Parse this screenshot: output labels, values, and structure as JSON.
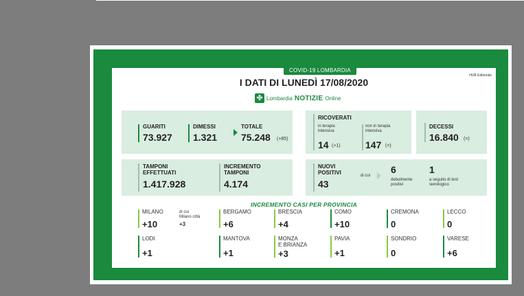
{
  "header": {
    "tag": "COVID-19 LOMBARDIA",
    "title": "I DATI DI LUNEDÌ 17/08/2020",
    "brand_prefix": "Lombardia",
    "brand_name": "NOTIZIE",
    "brand_suffix": "Online",
    "publisher": "HUB Editoriale"
  },
  "summary": {
    "guariti_label": "GUARITI",
    "guariti_value": "73.927",
    "dimessi_label": "DIMESSI",
    "dimessi_value": "1.321",
    "totale_label": "TOTALE",
    "totale_value": "75.248",
    "totale_delta": "(+85)"
  },
  "ricoverati": {
    "label": "RICOVERATI",
    "ti_label_1": "in terapia",
    "ti_label_2": "intensiva",
    "ti_value": "14",
    "ti_delta": "(+1)",
    "nti_label_1": "non in terapia",
    "nti_label_2": "intensiva",
    "nti_value": "147",
    "nti_delta": "(=)"
  },
  "decessi": {
    "label": "DECESSI",
    "value": "16.840",
    "delta": "(=)"
  },
  "tamponi": {
    "label_1": "TAMPONI",
    "label_2": "EFFETTUATI",
    "value": "1.417.928",
    "inc_label_1": "INCREMENTO",
    "inc_label_2": "TAMPONI",
    "inc_value": "4.174"
  },
  "positivi": {
    "label_1": "NUOVI",
    "label_2": "POSITIVI",
    "value": "43",
    "dicui": "di cui",
    "deb_value": "6",
    "deb_label_1": "debolmente",
    "deb_label_2": "positivi",
    "sier_value": "1",
    "sier_label_1": "a seguito di test",
    "sier_label_2": "sierologico"
  },
  "province_title": "INCREMENTO CASI PER PROVINCIA",
  "milano_extra": {
    "line1": "di cui",
    "line2": "Milano città",
    "value": "+3"
  },
  "province": [
    {
      "name": "MILANO",
      "value": "+10",
      "color": "#8ac83f"
    },
    {
      "name": "BERGAMO",
      "value": "+6",
      "color": "#8ac83f"
    },
    {
      "name": "BRESCIA",
      "value": "+4",
      "color": "#8ac83f"
    },
    {
      "name": "COMO",
      "value": "+10",
      "color": "#1a8a3e"
    },
    {
      "name": "CREMONA",
      "value": "0",
      "color": "#1a8a3e"
    },
    {
      "name": "LECCO",
      "value": "0",
      "color": "#8ac83f"
    },
    {
      "name": "LODI",
      "value": "+1",
      "color": "#1a8a3e"
    },
    {
      "name": "MANTOVA",
      "value": "+1",
      "color": "#1a8a3e"
    },
    {
      "name": "MONZA",
      "name2": "E BRIANZA",
      "value": "+3",
      "color": "#8ac83f"
    },
    {
      "name": "PAVIA",
      "value": "+1",
      "color": "#8ac83f"
    },
    {
      "name": "SONDRIO",
      "value": "0",
      "color": "#8ac83f"
    },
    {
      "name": "VARESE",
      "value": "+6",
      "color": "#1a8a3e"
    }
  ]
}
